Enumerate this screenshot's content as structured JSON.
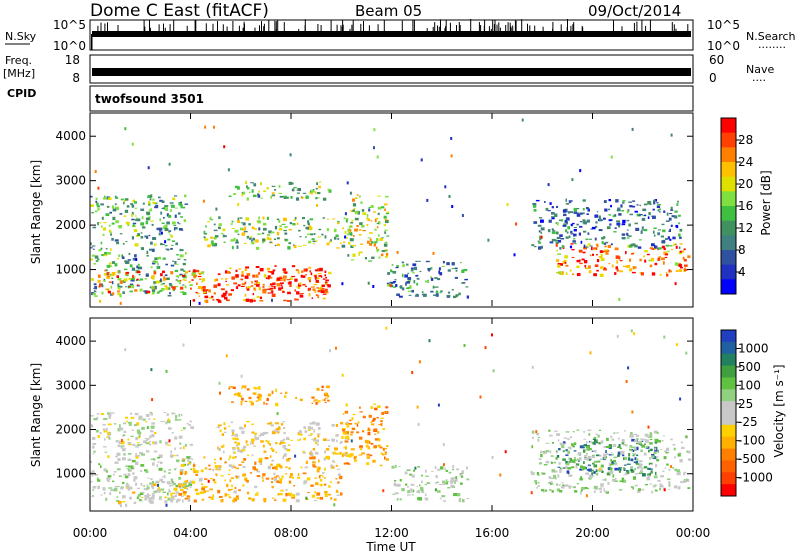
{
  "header": {
    "station": "Dome C East (fitACF)",
    "beam": "Beam 05",
    "date": "09/Oct/2014"
  },
  "nsky_panel": {
    "label": "N.Sky",
    "left_ticks": [
      "10^5",
      "10^0"
    ],
    "right_ticks": [
      "10^5",
      "10^0"
    ],
    "right_label": "N.Search",
    "right_dots": "........"
  },
  "freq_panel": {
    "label_top": "Freq.",
    "label_unit": "[MHz]",
    "left_ticks": [
      "18",
      "8"
    ],
    "right_ticks": [
      "60",
      "0"
    ],
    "right_label": "Nave",
    "right_dots": "....",
    "cpid_label": "CPID",
    "cpid_value": "twofsound  3501"
  },
  "colorbars": {
    "power": {
      "label": "Power [dB]",
      "ticks": [
        "28",
        "24",
        "20",
        "16",
        "12",
        "8",
        "4"
      ],
      "colors": [
        "#ff0000",
        "#ff4000",
        "#ff8000",
        "#ffc000",
        "#e0e000",
        "#80e040",
        "#40c040",
        "#409060",
        "#408080",
        "#3050a0",
        "#2030c0",
        "#0000ff"
      ]
    },
    "velocity": {
      "label": "Velocity [m s⁻¹]",
      "ticks": [
        "1000",
        "500",
        "100",
        "25",
        "-25",
        "-100",
        "-500",
        "-1000"
      ],
      "colors": [
        "#2040c0",
        "#2060a0",
        "#208060",
        "#40a040",
        "#60c040",
        "#90d080",
        "#c8c8c8",
        "#c8c8c8",
        "#ffd000",
        "#ffb000",
        "#ff8000",
        "#ff6000",
        "#ff4000",
        "#ff0000"
      ]
    }
  },
  "axes": {
    "ylabel": "Slant Range [km]",
    "xlabel": "Time UT",
    "xticks": [
      "00:00",
      "04:00",
      "08:00",
      "12:00",
      "16:00",
      "20:00",
      "00:00"
    ],
    "yticks": [
      "1000",
      "2000",
      "3000",
      "4000"
    ]
  },
  "chart_data": [
    {
      "type": "heatmap",
      "quantity": "Power [dB]",
      "x_range_hours": [
        0,
        24
      ],
      "y_range_km": [
        180,
        4500
      ],
      "clim": [
        0,
        30
      ],
      "regions": [
        {
          "t": [
            0.0,
            3.8
          ],
          "r": [
            400,
            2700
          ],
          "value": 12
        },
        {
          "t": [
            0.3,
            4.5
          ],
          "r": [
            500,
            1000
          ],
          "value": 22
        },
        {
          "t": [
            4.0,
            9.5
          ],
          "r": [
            300,
            1100
          ],
          "value": 26
        },
        {
          "t": [
            6.0,
            9.5
          ],
          "r": [
            500,
            900
          ],
          "value": 28
        },
        {
          "t": [
            4.5,
            10.5
          ],
          "r": [
            1500,
            2200
          ],
          "value": 15
        },
        {
          "t": [
            5.5,
            9.5
          ],
          "r": [
            2600,
            3000
          ],
          "value": 14
        },
        {
          "t": [
            10.2,
            11.8
          ],
          "r": [
            1200,
            2700
          ],
          "value": 18
        },
        {
          "t": [
            11.8,
            15.0
          ],
          "r": [
            400,
            1200
          ],
          "value": 10
        },
        {
          "t": [
            18.5,
            23.8
          ],
          "r": [
            900,
            1600
          ],
          "value": 24
        },
        {
          "t": [
            17.5,
            23.5
          ],
          "r": [
            1500,
            2600
          ],
          "value": 8
        }
      ]
    },
    {
      "type": "heatmap",
      "quantity": "Velocity [m s-1]",
      "x_range_hours": [
        0,
        24
      ],
      "y_range_km": [
        180,
        4500
      ],
      "clim": [
        -1000,
        1000
      ],
      "regions": [
        {
          "t": [
            0.0,
            4.0
          ],
          "r": [
            1400,
            2400
          ],
          "value": 0
        },
        {
          "t": [
            0.0,
            4.0
          ],
          "r": [
            400,
            1400
          ],
          "value": 150
        },
        {
          "t": [
            0.8,
            4.0
          ],
          "r": [
            300,
            800
          ],
          "value": -80
        },
        {
          "t": [
            3.5,
            10.0
          ],
          "r": [
            400,
            1400
          ],
          "value": -300
        },
        {
          "t": [
            5.0,
            10.5
          ],
          "r": [
            1400,
            2200
          ],
          "value": -150
        },
        {
          "t": [
            5.5,
            9.5
          ],
          "r": [
            2600,
            3000
          ],
          "value": -400
        },
        {
          "t": [
            10.0,
            11.8
          ],
          "r": [
            1200,
            2600
          ],
          "value": -400
        },
        {
          "t": [
            12.0,
            15.0
          ],
          "r": [
            400,
            1200
          ],
          "value": 120
        },
        {
          "t": [
            18.5,
            22.5
          ],
          "r": [
            1000,
            1800
          ],
          "value": 700
        },
        {
          "t": [
            17.5,
            23.8
          ],
          "r": [
            600,
            2000
          ],
          "value": 150
        }
      ]
    }
  ]
}
